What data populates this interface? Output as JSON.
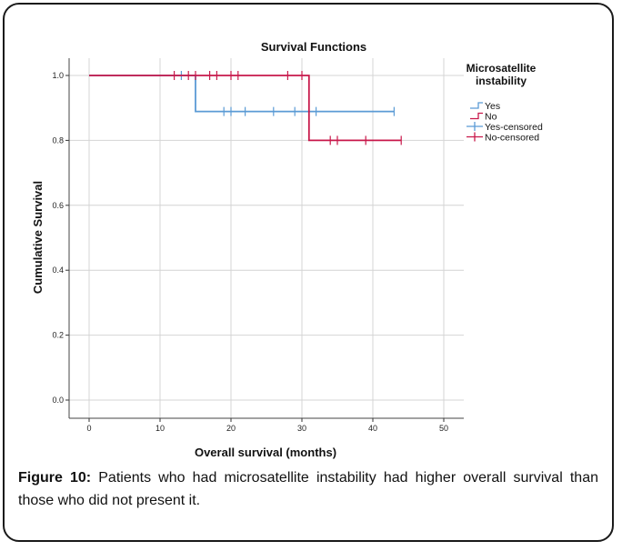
{
  "chart_data": {
    "type": "line",
    "title": "Survival Functions",
    "xlabel": "Overall survival (months)",
    "ylabel": "Cumulative Survival",
    "xlim": [
      0,
      50
    ],
    "ylim": [
      0,
      1
    ],
    "x_ticks": [
      "0",
      "10",
      "20",
      "30",
      "40",
      "50"
    ],
    "y_ticks": [
      "0.0",
      "0.2",
      "0.4",
      "0.6",
      "0.8",
      "1.0"
    ],
    "grid": true,
    "legend_title": "Microsatellite instability",
    "legend_entries": [
      "Yes",
      "No",
      "Yes-censored",
      "No-censored"
    ],
    "legend_position": "right",
    "series": [
      {
        "name": "Yes",
        "color": "#5b9bd5",
        "steps": [
          [
            0,
            1.0
          ],
          [
            15,
            1.0
          ],
          [
            15,
            0.889
          ],
          [
            43,
            0.889
          ]
        ],
        "censored": [
          [
            13,
            1.0
          ],
          [
            19,
            0.889
          ],
          [
            20,
            0.889
          ],
          [
            22,
            0.889
          ],
          [
            26,
            0.889
          ],
          [
            29,
            0.889
          ],
          [
            32,
            0.889
          ],
          [
            43,
            0.889
          ]
        ]
      },
      {
        "name": "No",
        "color": "#c8194b",
        "steps": [
          [
            0,
            1.0
          ],
          [
            31,
            1.0
          ],
          [
            31,
            0.8
          ],
          [
            44,
            0.8
          ]
        ],
        "censored": [
          [
            12,
            1.0
          ],
          [
            14,
            1.0
          ],
          [
            15,
            1.0
          ],
          [
            17,
            1.0
          ],
          [
            18,
            1.0
          ],
          [
            20,
            1.0
          ],
          [
            21,
            1.0
          ],
          [
            28,
            1.0
          ],
          [
            30,
            1.0
          ],
          [
            34,
            0.8
          ],
          [
            35,
            0.8
          ],
          [
            39,
            0.8
          ],
          [
            44,
            0.8
          ]
        ]
      }
    ]
  },
  "caption": {
    "label": "Figure 10:",
    "text": " Patients who had microsatellite instability had higher overall survival than those who did not present it."
  }
}
